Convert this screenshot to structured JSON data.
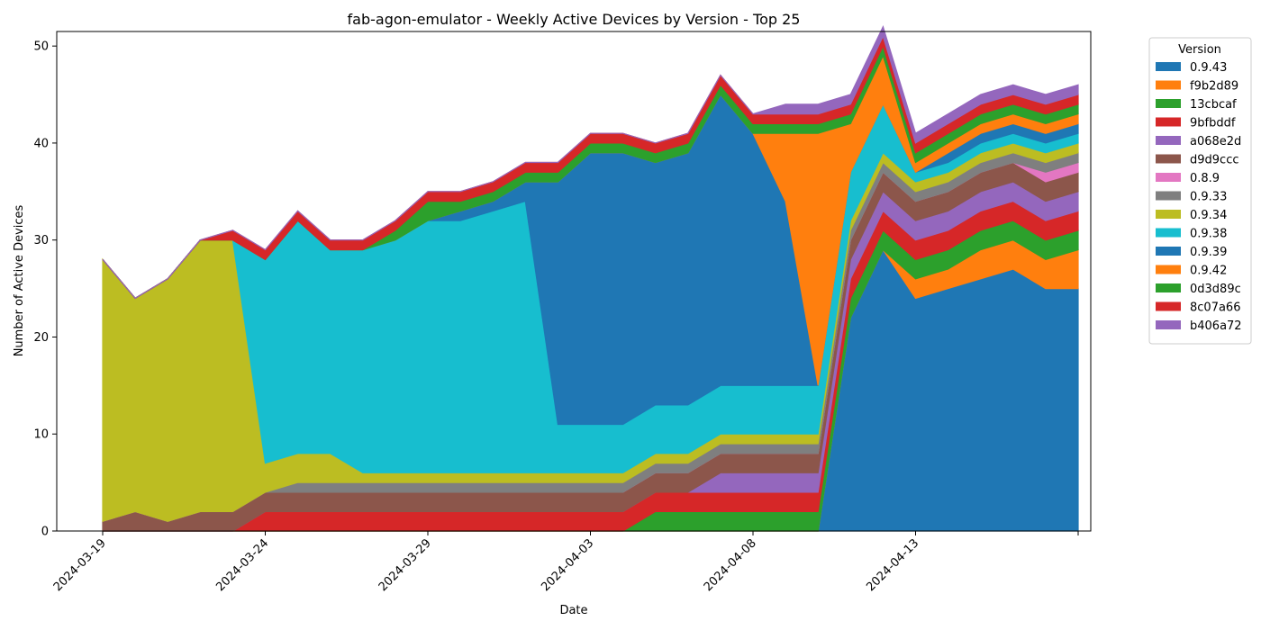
{
  "chart_data": {
    "type": "area",
    "stacked": true,
    "title": "fab-agon-emulator - Weekly Active Devices by Version - Top 25",
    "xlabel": "Date",
    "ylabel": "Number of Active Devices",
    "x_ticks": [
      "2024-03-19",
      "2024-03-24",
      "2024-03-29",
      "2024-04-03",
      "2024-04-08",
      "2024-04-13"
    ],
    "y_ticks": [
      "0",
      "10",
      "20",
      "30",
      "40",
      "50"
    ],
    "ylim": [
      0,
      51.5
    ],
    "grid": false,
    "legend": {
      "title": "Version",
      "placement": "outside-right"
    },
    "x": [
      "2024-03-19",
      "2024-03-20",
      "2024-03-21",
      "2024-03-22",
      "2024-03-23",
      "2024-03-24",
      "2024-03-25",
      "2024-03-26",
      "2024-03-27",
      "2024-03-28",
      "2024-03-29",
      "2024-03-30",
      "2024-03-31",
      "2024-04-01",
      "2024-04-02",
      "2024-04-03",
      "2024-04-04",
      "2024-04-05",
      "2024-04-06",
      "2024-04-07",
      "2024-04-08",
      "2024-04-09",
      "2024-04-10",
      "2024-04-11",
      "2024-04-12",
      "2024-04-13",
      "2024-04-14",
      "2024-04-15",
      "2024-04-16",
      "2024-04-17",
      "2024-04-18"
    ],
    "series": [
      {
        "name": "0.9.43",
        "color": "#1f77b4",
        "values": [
          0,
          0,
          0,
          0,
          0,
          0,
          0,
          0,
          0,
          0,
          0,
          0,
          0,
          0,
          0,
          0,
          0,
          0,
          0,
          0,
          0,
          0,
          0,
          22,
          29,
          24,
          25,
          26,
          27,
          25,
          25
        ]
      },
      {
        "name": "f9b2d89",
        "color": "#ff7f0e",
        "values": [
          0,
          0,
          0,
          0,
          0,
          0,
          0,
          0,
          0,
          0,
          0,
          0,
          0,
          0,
          0,
          0,
          0,
          0,
          0,
          0,
          0,
          0,
          0,
          0,
          0,
          2,
          2,
          3,
          3,
          3,
          4
        ]
      },
      {
        "name": "13cbcaf",
        "color": "#2ca02c",
        "values": [
          0,
          0,
          0,
          0,
          0,
          0,
          0,
          0,
          0,
          0,
          0,
          0,
          0,
          0,
          0,
          0,
          0,
          2,
          2,
          2,
          2,
          2,
          2,
          2,
          2,
          2,
          2,
          2,
          2,
          2,
          2
        ]
      },
      {
        "name": "9bfbddf",
        "color": "#d62728",
        "values": [
          0,
          0,
          0,
          0,
          0,
          2,
          2,
          2,
          2,
          2,
          2,
          2,
          2,
          2,
          2,
          2,
          2,
          2,
          2,
          2,
          2,
          2,
          2,
          2,
          2,
          2,
          2,
          2,
          2,
          2,
          2
        ]
      },
      {
        "name": "a068e2d",
        "color": "#9467bd",
        "values": [
          0,
          0,
          0,
          0,
          0,
          0,
          0,
          0,
          0,
          0,
          0,
          0,
          0,
          0,
          0,
          0,
          0,
          0,
          0,
          2,
          2,
          2,
          2,
          2,
          2,
          2,
          2,
          2,
          2,
          2,
          2
        ]
      },
      {
        "name": "d9d9ccc",
        "color": "#8c564b",
        "values": [
          1,
          2,
          1,
          2,
          2,
          2,
          2,
          2,
          2,
          2,
          2,
          2,
          2,
          2,
          2,
          2,
          2,
          2,
          2,
          2,
          2,
          2,
          2,
          2,
          2,
          2,
          2,
          2,
          2,
          2,
          2
        ]
      },
      {
        "name": "0.8.9",
        "color": "#e377c2",
        "values": [
          0,
          0,
          0,
          0,
          0,
          0,
          0,
          0,
          0,
          0,
          0,
          0,
          0,
          0,
          0,
          0,
          0,
          0,
          0,
          0,
          0,
          0,
          0,
          0,
          0,
          0,
          0,
          0,
          0,
          1,
          1
        ]
      },
      {
        "name": "0.9.33",
        "color": "#7f7f7f",
        "values": [
          0,
          0,
          0,
          0,
          0,
          0,
          1,
          1,
          1,
          1,
          1,
          1,
          1,
          1,
          1,
          1,
          1,
          1,
          1,
          1,
          1,
          1,
          1,
          1,
          1,
          1,
          1,
          1,
          1,
          1,
          1
        ]
      },
      {
        "name": "0.9.34",
        "color": "#bcbd22",
        "values": [
          27,
          22,
          25,
          28,
          28,
          3,
          3,
          3,
          1,
          1,
          1,
          1,
          1,
          1,
          1,
          1,
          1,
          1,
          1,
          1,
          1,
          1,
          1,
          1,
          1,
          1,
          1,
          1,
          1,
          1,
          1
        ]
      },
      {
        "name": "0.9.38",
        "color": "#17becf",
        "values": [
          0,
          0,
          0,
          0,
          0,
          21,
          24,
          21,
          23,
          24,
          26,
          26,
          27,
          28,
          5,
          5,
          5,
          5,
          5,
          5,
          5,
          5,
          5,
          5,
          5,
          1,
          1,
          1,
          1,
          1,
          1
        ]
      },
      {
        "name": "0.9.39",
        "color": "#1f77b4",
        "values": [
          0,
          0,
          0,
          0,
          0,
          0,
          0,
          0,
          0,
          0,
          0,
          1,
          1,
          2,
          25,
          28,
          28,
          25,
          26,
          30,
          26,
          19,
          0,
          0,
          0,
          0,
          1,
          1,
          1,
          1,
          1
        ]
      },
      {
        "name": "0.9.42",
        "color": "#ff7f0e",
        "values": [
          0,
          0,
          0,
          0,
          0,
          0,
          0,
          0,
          0,
          0,
          0,
          0,
          0,
          0,
          0,
          0,
          0,
          0,
          0,
          0,
          0,
          7,
          26,
          5,
          5,
          1,
          1,
          1,
          1,
          1,
          1
        ]
      },
      {
        "name": "0d3d89c",
        "color": "#2ca02c",
        "values": [
          0,
          0,
          0,
          0,
          0,
          0,
          0,
          0,
          0,
          1,
          2,
          1,
          1,
          1,
          1,
          1,
          1,
          1,
          1,
          1,
          1,
          1,
          1,
          1,
          1,
          1,
          1,
          1,
          1,
          1,
          1
        ]
      },
      {
        "name": "8c07a66",
        "color": "#d62728",
        "values": [
          0,
          0,
          0,
          0,
          1,
          1,
          1,
          1,
          1,
          1,
          1,
          1,
          1,
          1,
          1,
          1,
          1,
          1,
          1,
          1,
          1,
          1,
          1,
          1,
          1,
          1,
          1,
          1,
          1,
          1,
          1
        ]
      },
      {
        "name": "b406a72",
        "color": "#9467bd",
        "values": [
          0,
          0,
          0,
          0,
          0,
          0,
          0,
          0,
          0,
          0,
          0,
          0,
          0,
          0,
          0,
          0,
          0,
          0,
          0,
          0,
          0,
          1,
          1,
          1,
          1,
          1,
          1,
          1,
          1,
          1,
          1
        ]
      }
    ]
  }
}
